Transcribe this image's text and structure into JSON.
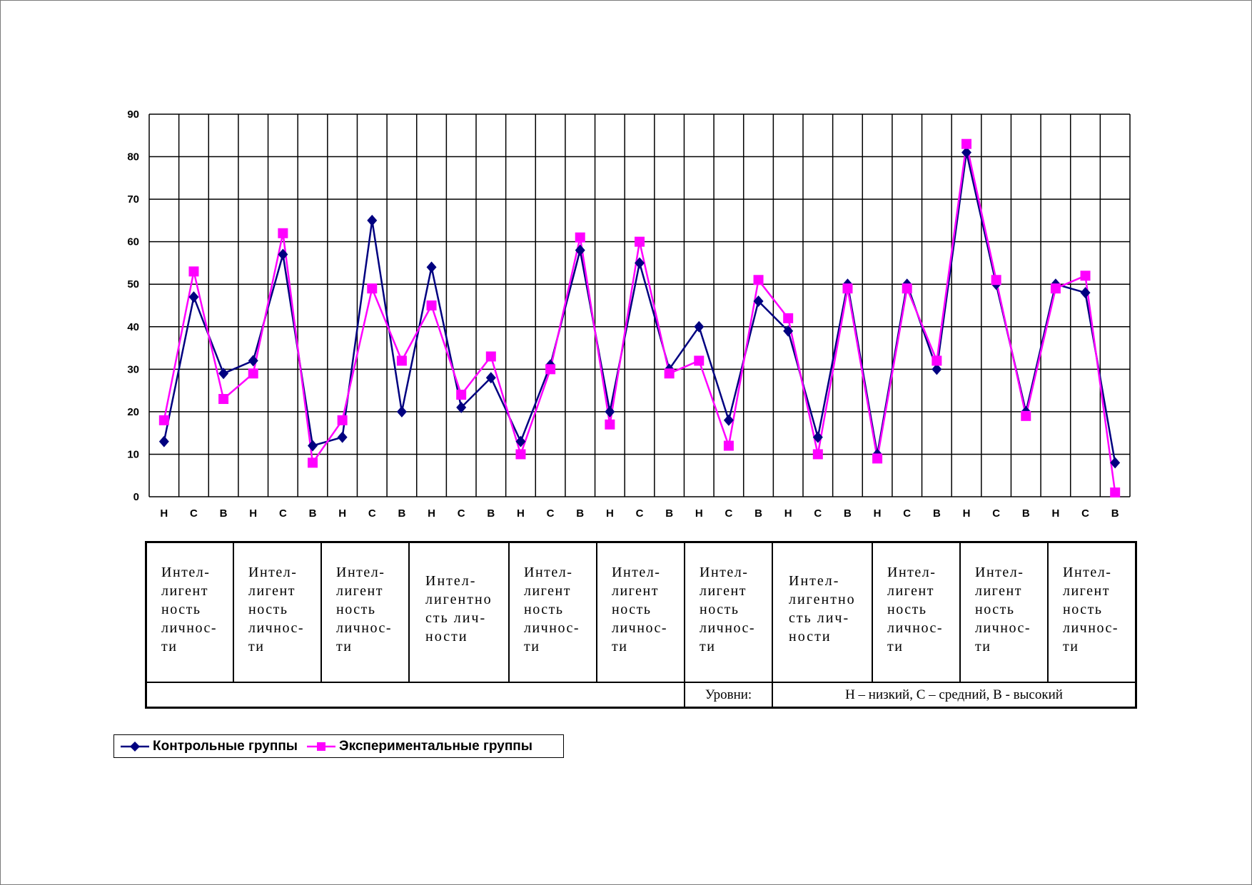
{
  "chart_data": {
    "type": "line",
    "title": "",
    "xlabel": "",
    "ylabel": "",
    "ylim": [
      0,
      90
    ],
    "yticks": [
      "0",
      "10",
      "20",
      "30",
      "40",
      "50",
      "60",
      "70",
      "80",
      "90"
    ],
    "grid": true,
    "x": [
      "Н",
      "С",
      "В",
      "Н",
      "С",
      "В",
      "Н",
      "С",
      "В",
      "Н",
      "С",
      "В",
      "Н",
      "С",
      "В",
      "Н",
      "С",
      "В",
      "Н",
      "С",
      "В",
      "Н",
      "С",
      "В",
      "Н",
      "С",
      "В",
      "Н",
      "С",
      "В",
      "Н",
      "С",
      "В"
    ],
    "series": [
      {
        "name": "Контрольные группы",
        "color": "#000080",
        "marker": "diamond",
        "values": [
          13,
          47,
          29,
          32,
          57,
          12,
          14,
          65,
          20,
          54,
          21,
          28,
          13,
          31,
          58,
          20,
          55,
          30,
          40,
          18,
          46,
          39,
          14,
          50,
          10,
          50,
          30,
          81,
          50,
          20,
          50,
          48,
          8
        ]
      },
      {
        "name": "Экспериментальные группы",
        "color": "#ff00ff",
        "marker": "square",
        "values": [
          18,
          53,
          23,
          29,
          62,
          8,
          18,
          49,
          32,
          45,
          24,
          33,
          10,
          30,
          61,
          17,
          60,
          29,
          32,
          12,
          51,
          42,
          10,
          49,
          9,
          49,
          32,
          83,
          51,
          19,
          49,
          52,
          1
        ]
      }
    ],
    "legend": "bottom-left"
  },
  "groups_table": {
    "categories": [
      {
        "text": "Интел-\nлигент\nность\nличнос-\nти",
        "style": "normal"
      },
      {
        "text": "Интел-\nлигент\nность\nличнос-\nти",
        "style": "normal"
      },
      {
        "text": "Интел-\nлигент\nность\nличнос-\nти",
        "style": "normal"
      },
      {
        "text": "Интел-\nлигентно\nсть лич-\nности",
        "style": "alt"
      },
      {
        "text": "Интел-\nлигент\nность\nличнос-\nти",
        "style": "normal"
      },
      {
        "text": "Интел-\nлигент\nность\nличнос-\nти",
        "style": "normal"
      },
      {
        "text": "Интел-\nлигент\nность\nличнос-\nти",
        "style": "normal"
      },
      {
        "text": "Интел-\nлигентно\nсть лич-\nности",
        "style": "alt"
      },
      {
        "text": "Интел-\nлигент\nность\nличнос-\nти",
        "style": "normal"
      },
      {
        "text": "Интел-\nлигент\nность\nличнос-\nти",
        "style": "normal"
      },
      {
        "text": "Интел-\nлигент\nность\nличнос-\nти",
        "style": "normal"
      }
    ],
    "levels_label": "Уровни:",
    "levels_value": "Н – низкий, С – средний, В - высокий"
  }
}
